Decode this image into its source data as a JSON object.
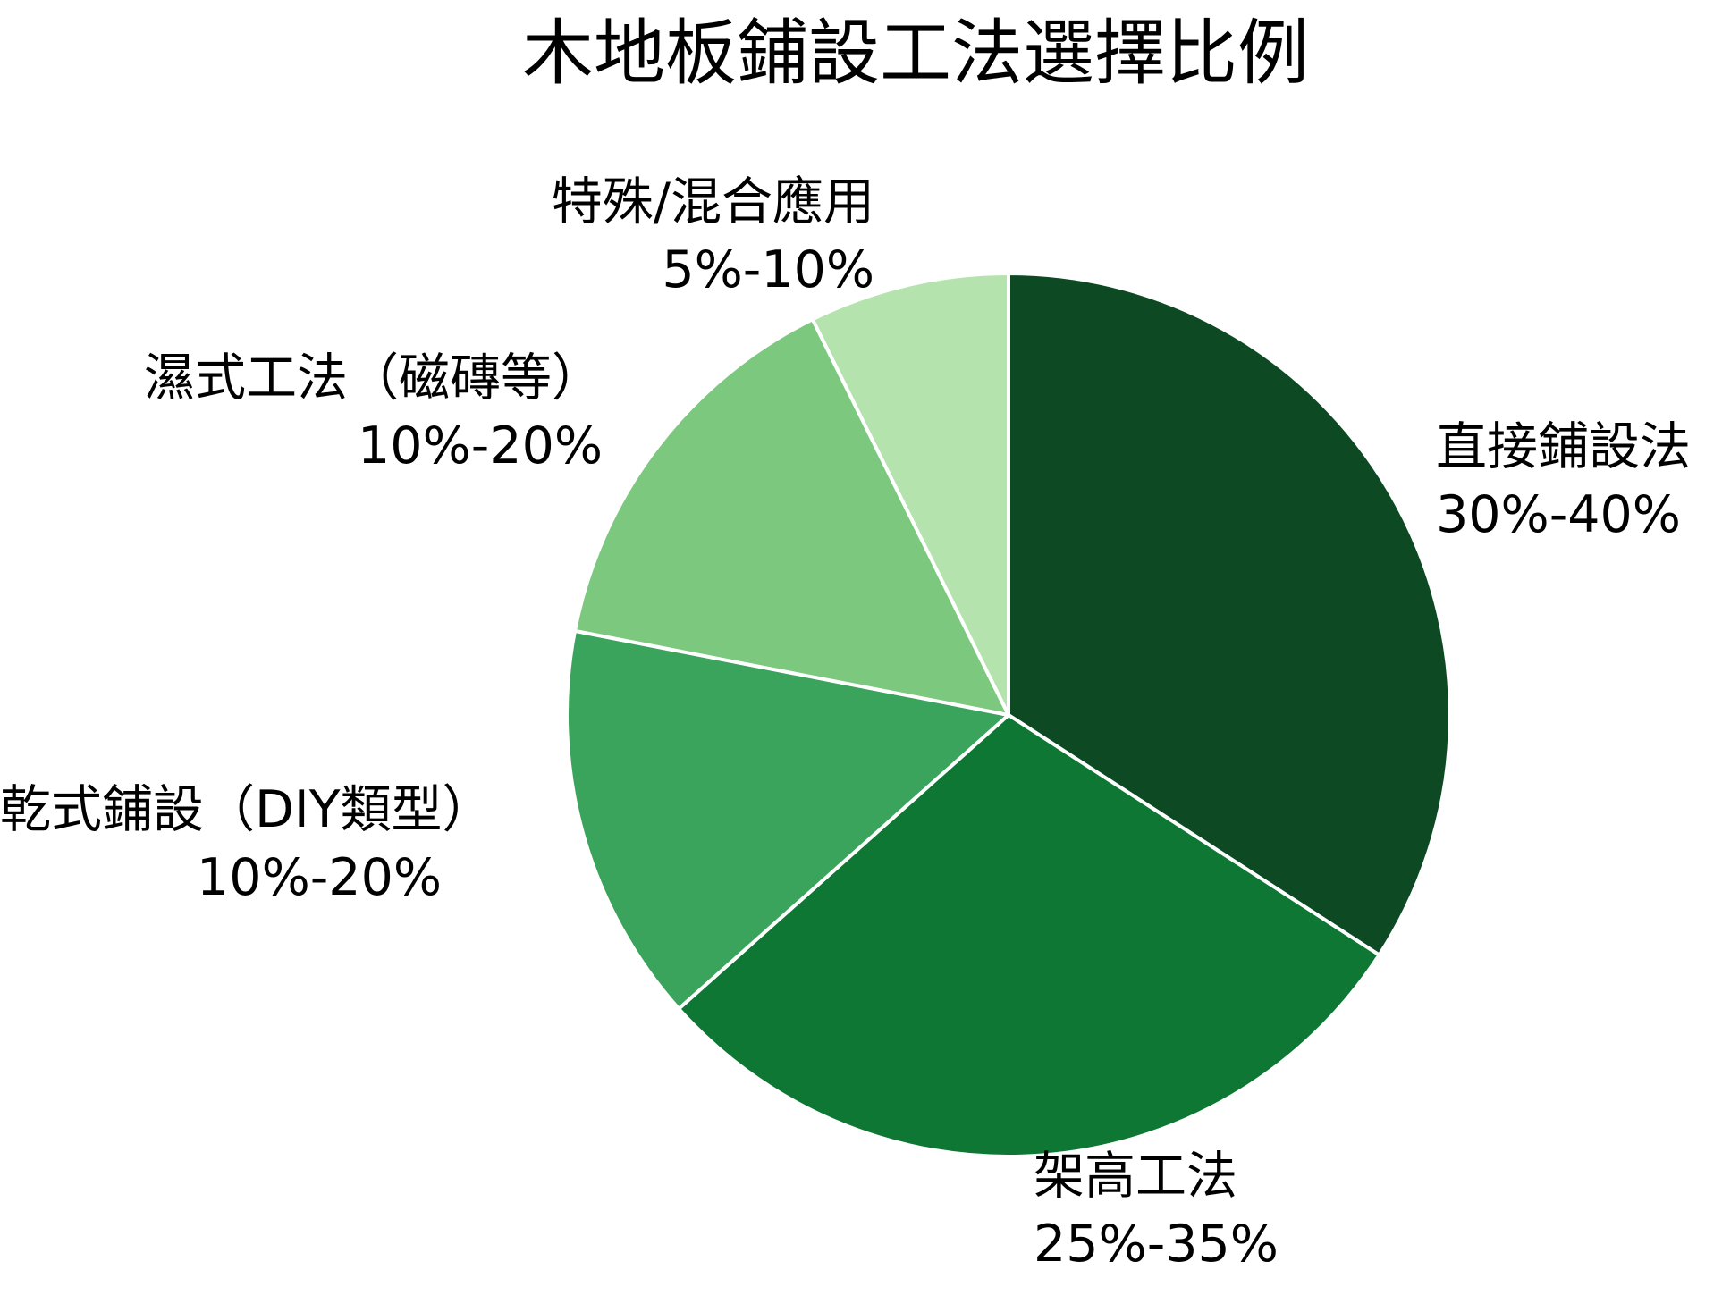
{
  "chart_data": {
    "type": "pie",
    "title": "木地板鋪設工法選擇比例",
    "categories": [
      "直接鋪設法",
      "架高工法",
      "乾式鋪設（DIY類型）",
      "濕式工法（磁磚等）",
      "特殊/混合應用"
    ],
    "range_labels": [
      "30%-40%",
      "25%-35%",
      "10%-20%",
      "10%-20%",
      "5%-10%"
    ],
    "values": [
      35,
      30,
      15,
      15,
      7.5
    ],
    "colors": [
      "#0d4a24",
      "#0e7734",
      "#3aa45c",
      "#7cc87f",
      "#b5e3ae"
    ],
    "start_angle_deg": 90,
    "direction": "clockwise",
    "border_color": "#ffffff",
    "background_color": "#ffffff",
    "text_color": "#000000",
    "legend": "none"
  }
}
